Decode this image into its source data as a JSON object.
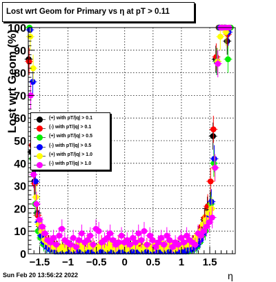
{
  "title": "Lost wrt Geom for Primary vs  η at pT > 0.11",
  "timestamp": "Sun Feb 20 13:56:22 2022",
  "chart_data": {
    "type": "scatter",
    "title": "Lost wrt Geom for Primary vs  η at pT > 0.11",
    "xlabel": "η",
    "ylabel": "Lost wrt Geom (%)",
    "xlim": [
      -1.7,
      1.95
    ],
    "ylim": [
      0,
      100
    ],
    "xticks": [
      -1.5,
      -1,
      -0.5,
      0,
      0.5,
      1,
      1.5
    ],
    "xtick_labels": [
      "−1.5",
      "−1",
      "−0.5",
      "0",
      "0.5",
      "1",
      "1.5"
    ],
    "yticks": [
      0,
      10,
      20,
      30,
      40,
      50,
      60,
      70,
      80,
      90,
      100
    ],
    "ytick_labels": [
      "0",
      "10",
      "20",
      "30",
      "40",
      "50",
      "60",
      "70",
      "80",
      "90",
      "100"
    ],
    "grid": true,
    "legend_position": "middle-left",
    "x": [
      -1.675,
      -1.625,
      -1.575,
      -1.525,
      -1.475,
      -1.425,
      -1.375,
      -1.325,
      -1.275,
      -1.225,
      -1.175,
      -1.125,
      -1.075,
      -1.025,
      -0.975,
      -0.925,
      -0.875,
      -0.825,
      -0.775,
      -0.725,
      -0.675,
      -0.625,
      -0.575,
      -0.525,
      -0.475,
      -0.425,
      -0.375,
      -0.325,
      -0.275,
      -0.225,
      -0.175,
      -0.125,
      -0.075,
      -0.025,
      0.025,
      0.075,
      0.125,
      0.175,
      0.225,
      0.275,
      0.325,
      0.375,
      0.425,
      0.475,
      0.525,
      0.575,
      0.625,
      0.675,
      0.725,
      0.775,
      0.825,
      0.875,
      0.925,
      0.975,
      1.025,
      1.075,
      1.125,
      1.175,
      1.225,
      1.275,
      1.325,
      1.375,
      1.425,
      1.475,
      1.525,
      1.575,
      1.625,
      1.675,
      1.725,
      1.775,
      1.825,
      1.875
    ],
    "series": [
      {
        "name": "(+) with pT/|q| > 0.1",
        "color": "#000000",
        "values": [
          86,
          45,
          32,
          18,
          12,
          8,
          6,
          5,
          4,
          3,
          3,
          2,
          3,
          2,
          2,
          3,
          2,
          2,
          3,
          2,
          2,
          2,
          3,
          2,
          2,
          2,
          3,
          2,
          2,
          2,
          2,
          3,
          2,
          2,
          2,
          2,
          3,
          2,
          2,
          2,
          3,
          2,
          2,
          2,
          2,
          3,
          2,
          2,
          2,
          2,
          3,
          2,
          2,
          3,
          2,
          3,
          3,
          4,
          5,
          6,
          8,
          12,
          15,
          20,
          22,
          52,
          86,
          100,
          100,
          100,
          94,
          null
        ]
      },
      {
        "name": "(-) with pT/|q| > 0.1",
        "color": "#ff0000",
        "values": [
          85,
          48,
          31,
          17,
          11,
          8,
          6,
          5,
          4,
          3,
          3,
          2,
          2,
          3,
          2,
          2,
          2,
          3,
          2,
          2,
          2,
          2,
          2,
          3,
          2,
          2,
          2,
          2,
          3,
          2,
          2,
          2,
          2,
          3,
          2,
          2,
          2,
          2,
          2,
          3,
          2,
          2,
          2,
          2,
          3,
          2,
          2,
          2,
          3,
          2,
          2,
          2,
          3,
          2,
          2,
          3,
          3,
          4,
          5,
          6,
          9,
          12,
          16,
          21,
          32,
          55,
          87,
          100,
          100,
          100,
          97,
          null
        ]
      },
      {
        "name": "(+) with pT/|q| > 0.5",
        "color": "#00ee00",
        "values": [
          100,
          42,
          22,
          10,
          7,
          4,
          3,
          2,
          2,
          1,
          1,
          1,
          1,
          1,
          1,
          1,
          1,
          1,
          1,
          1,
          1,
          1,
          1,
          1,
          1,
          1,
          1,
          1,
          1,
          1,
          1,
          1,
          1,
          1,
          1,
          1,
          1,
          1,
          1,
          1,
          1,
          1,
          1,
          1,
          1,
          1,
          1,
          1,
          1,
          1,
          1,
          1,
          1,
          1,
          1,
          1,
          1,
          2,
          2,
          3,
          5,
          8,
          10,
          14,
          22,
          40,
          85,
          100,
          100,
          100,
          86,
          100
        ]
      },
      {
        "name": "(-) with pT/|q| > 0.5",
        "color": "#0000ff",
        "values": [
          99,
          76,
          32,
          14,
          8,
          5,
          3,
          2,
          2,
          1,
          1,
          1,
          1,
          1,
          1,
          1,
          1,
          1,
          1,
          1,
          1,
          1,
          1,
          1,
          1,
          1,
          1,
          1,
          1,
          1,
          1,
          1,
          1,
          1,
          1,
          1,
          1,
          1,
          1,
          1,
          1,
          1,
          1,
          1,
          1,
          1,
          1,
          1,
          1,
          1,
          1,
          1,
          1,
          1,
          1,
          1,
          2,
          2,
          3,
          4,
          6,
          9,
          12,
          16,
          23,
          42,
          85,
          100,
          100,
          100,
          98,
          null
        ]
      },
      {
        "name": "(+) with pT/|q| > 1.0",
        "color": "#ffff00",
        "values": [
          96,
          82,
          25,
          13,
          10,
          6,
          5,
          4,
          3,
          3,
          2,
          3,
          2,
          4,
          3,
          2,
          3,
          4,
          3,
          2,
          5,
          3,
          4,
          2,
          3,
          5,
          3,
          2,
          4,
          3,
          2,
          5,
          3,
          4,
          2,
          3,
          4,
          3,
          5,
          2,
          3,
          4,
          3,
          2,
          4,
          3,
          5,
          2,
          3,
          4,
          3,
          2,
          4,
          3,
          5,
          4,
          4,
          5,
          6,
          8,
          10,
          13,
          15,
          18,
          20,
          38,
          85,
          96,
          100,
          98,
          100,
          null
        ]
      },
      {
        "name": "(-) with pT/|q| > 1.0",
        "color": "#ff00ff",
        "values": [
          70,
          35,
          22,
          15,
          12,
          9,
          6,
          5,
          7,
          4,
          8,
          11,
          6,
          5,
          4,
          7,
          3,
          6,
          9,
          5,
          6,
          8,
          4,
          11,
          10,
          5,
          6,
          7,
          9,
          6,
          4,
          5,
          8,
          5,
          6,
          4,
          7,
          5,
          9,
          6,
          10,
          4,
          8,
          6,
          3,
          5,
          7,
          4,
          8,
          6,
          3,
          5,
          4,
          7,
          5,
          8,
          6,
          5,
          4,
          9,
          8,
          10,
          12,
          14,
          16,
          38,
          84,
          100,
          100,
          100,
          100,
          null
        ]
      }
    ]
  }
}
